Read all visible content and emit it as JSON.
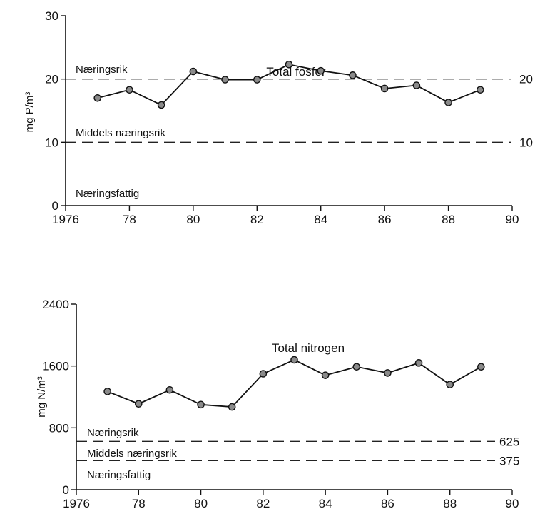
{
  "chart_data": [
    {
      "type": "line",
      "title": "Total fosfor",
      "ylabel": "mg P/m³",
      "xlim": [
        1976,
        1990
      ],
      "ylim": [
        0,
        30
      ],
      "x_ticks": [
        1976,
        1978,
        1980,
        1982,
        1984,
        1986,
        1988,
        1990
      ],
      "x_tick_labels": [
        "1976",
        "78",
        "80",
        "82",
        "84",
        "86",
        "88",
        "90"
      ],
      "y_ticks": [
        0,
        10,
        20,
        30
      ],
      "y_tick_labels": [
        "0",
        "10",
        "20",
        "30"
      ],
      "grid": false,
      "series": [
        {
          "x": [
            1977,
            1978,
            1979,
            1980,
            1981,
            1982,
            1983,
            1984,
            1985,
            1986,
            1987,
            1988,
            1989
          ],
          "values": [
            17.0,
            18.3,
            15.9,
            21.2,
            19.9,
            19.9,
            22.3,
            21.3,
            20.6,
            18.5,
            19.0,
            16.3,
            18.3
          ]
        }
      ],
      "reference_lines": [
        {
          "value": 20,
          "label": "20"
        },
        {
          "value": 10,
          "label": "10"
        }
      ],
      "zones": [
        {
          "label": "Næringsrik"
        },
        {
          "label": "Middels næringsrik"
        },
        {
          "label": "Næringsfattig"
        }
      ]
    },
    {
      "type": "line",
      "title": "Total nitrogen",
      "ylabel": "mg N/m³",
      "xlim": [
        1976,
        1990
      ],
      "ylim": [
        0,
        2400
      ],
      "x_ticks": [
        1976,
        1978,
        1980,
        1982,
        1984,
        1986,
        1988,
        1990
      ],
      "x_tick_labels": [
        "1976",
        "78",
        "80",
        "82",
        "84",
        "86",
        "88",
        "90"
      ],
      "y_ticks": [
        0,
        800,
        1600,
        2400
      ],
      "y_tick_labels": [
        "0",
        "800",
        "1600",
        "2400"
      ],
      "grid": false,
      "series": [
        {
          "x": [
            1977,
            1978,
            1979,
            1980,
            1981,
            1982,
            1983,
            1984,
            1985,
            1986,
            1987,
            1988,
            1989
          ],
          "values": [
            1270,
            1110,
            1290,
            1100,
            1070,
            1500,
            1680,
            1480,
            1590,
            1510,
            1640,
            1360,
            1590
          ]
        }
      ],
      "reference_lines": [
        {
          "value": 625,
          "label": "625"
        },
        {
          "value": 375,
          "label": "375"
        }
      ],
      "zones": [
        {
          "label": "Næringsrik"
        },
        {
          "label": "Middels næringsrik"
        },
        {
          "label": "Næringsfattig"
        }
      ]
    }
  ]
}
